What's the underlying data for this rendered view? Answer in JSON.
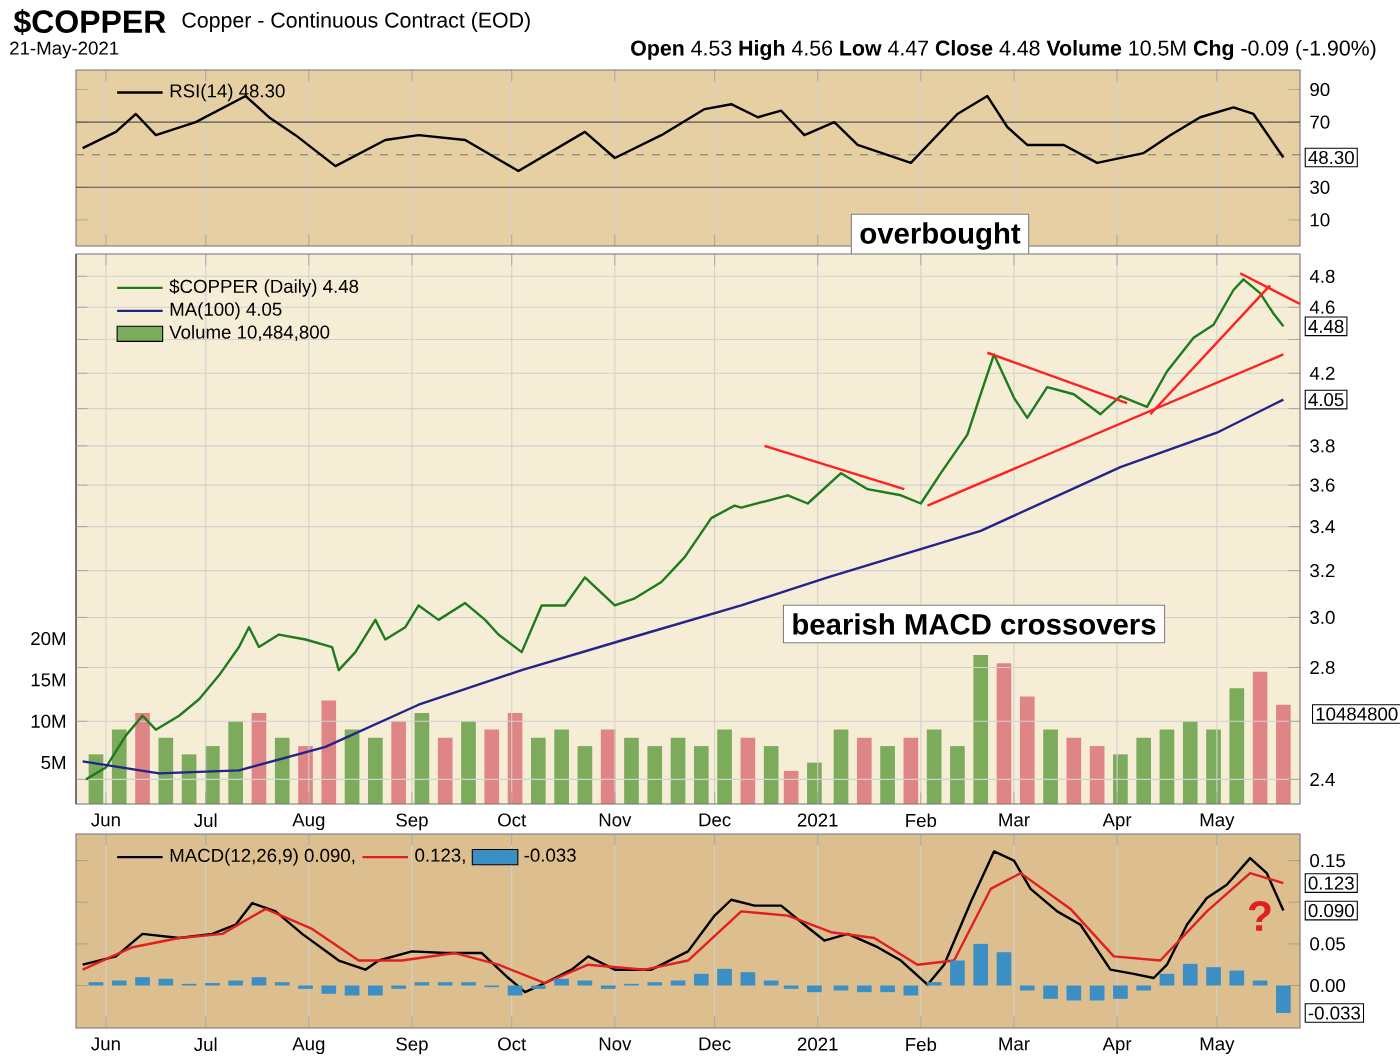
{
  "chart_data": [
    {
      "type": "line",
      "title": "$COPPER",
      "subtitle": "Copper - Continuous Contract (EOD)",
      "annotations": [
        "21-May-2021",
        "**Open** 4.53 **High** 4.56 **Low** 4.47 **Close** 4.48 **Volume** 10.5M **Chg** -0.09 (-1.90%)",
        "overbought",
        {
          "text": "48.30",
          "x": "2021-05-21",
          "y": 48.3
        }
      ],
      "xlim": [
        "2020-05-23",
        "2021-05-26"
      ],
      "xticks": [
        {
          "value": "2020-06-01",
          "label": null
        },
        {
          "value": "2020-07-01",
          "label": null
        },
        {
          "value": "2020-08-01",
          "label": null
        },
        {
          "value": "2020-09-01",
          "label": null
        },
        {
          "value": "2020-10-01",
          "label": null
        },
        {
          "value": "2020-11-01",
          "label": null
        },
        {
          "value": "2020-12-01",
          "label": null
        },
        {
          "value": "2021-01-01",
          "label": null
        },
        {
          "value": "2021-02-01",
          "label": null
        },
        {
          "value": "2021-03-01",
          "label": null
        },
        {
          "value": "2021-04-01",
          "label": null
        },
        {
          "value": "2021-05-01",
          "label": null
        }
      ],
      "ylim": [
        -6,
        102
      ],
      "yticks": [
        10,
        30,
        70,
        90
      ],
      "tick_labels": "y",
      "grid": "x",
      "legend": "top left",
      "ref_lines": [
        {
          "axis": "y",
          "value": 70,
          "color": "#555555"
        },
        {
          "axis": "y",
          "value": 30,
          "color": "#555555"
        },
        {
          "axis": "y",
          "value": 50,
          "color": "#777777",
          "line_style": "dashed"
        }
      ],
      "series": [
        {
          "name": "RSI(14) 48.30",
          "color": "#000000",
          "x": [
            "2020-05-25",
            "2020-06-04",
            "2020-06-10",
            "2020-06-16",
            "2020-06-28",
            "2020-07-13",
            "2020-07-20",
            "2020-07-28",
            "2020-08-09",
            "2020-08-24",
            "2020-09-03",
            "2020-09-17",
            "2020-10-03",
            "2020-10-23",
            "2020-11-01",
            "2020-11-15",
            "2020-11-28",
            "2020-12-06",
            "2020-12-14",
            "2020-12-21",
            "2020-12-28",
            "2021-01-06",
            "2021-01-13",
            "2021-01-29",
            "2021-02-12",
            "2021-02-21",
            "2021-02-27",
            "2021-03-05",
            "2021-03-16",
            "2021-03-26",
            "2021-04-09",
            "2021-04-17",
            "2021-04-26",
            "2021-05-06",
            "2021-05-12",
            "2021-05-21"
          ],
          "values": [
            54,
            64,
            75,
            62,
            70,
            86,
            73,
            62,
            43,
            59,
            62,
            59,
            40,
            64,
            48,
            62,
            78,
            81,
            73,
            77,
            62,
            70,
            56,
            45,
            75,
            86,
            67,
            56,
            56,
            45,
            51,
            62,
            73,
            79,
            75,
            48.3
          ]
        }
      ]
    },
    {
      "type": "line",
      "annotations": [
        "bearish MACD crossovers",
        {
          "text": "4.48",
          "x": "2021-05-21",
          "y": 4.48
        },
        {
          "text": "4.05",
          "x": "2021-05-21",
          "y": 4.05
        },
        "10484800"
      ],
      "xlim": [
        "2020-05-23",
        "2021-05-26"
      ],
      "xticks": [
        {
          "value": "2020-06-01",
          "label": "Jun"
        },
        {
          "value": "2020-07-01",
          "label": "Jul"
        },
        {
          "value": "2020-08-01",
          "label": "Aug"
        },
        {
          "value": "2020-09-01",
          "label": "Sep"
        },
        {
          "value": "2020-10-01",
          "label": "Oct"
        },
        {
          "value": "2020-11-01",
          "label": "Nov"
        },
        {
          "value": "2020-12-01",
          "label": "Dec"
        },
        {
          "value": "2021-01-01",
          "label": "2021"
        },
        {
          "value": "2021-02-01",
          "label": "Feb"
        },
        {
          "value": "2021-03-01",
          "label": "Mar"
        },
        {
          "value": "2021-04-01",
          "label": "Apr"
        },
        {
          "value": "2021-05-01",
          "label": "May"
        }
      ],
      "ylim": [
        2.32,
        4.95
      ],
      "log": true,
      "yticks": [
        2.4,
        {
          "value": 2.6,
          "label": null
        },
        2.8,
        {
          "value": 3.0,
          "label": "3.0"
        },
        3.2,
        3.4,
        3.6,
        3.8,
        {
          "value": 4.0,
          "label": null
        },
        4.2,
        {
          "value": 4.4,
          "label": null
        },
        4.6,
        4.8
      ],
      "y2lim": [
        0,
        66.5
      ],
      "y2ticks": [
        {
          "value": 5,
          "label": "5M"
        },
        {
          "value": 10,
          "label": "10M"
        },
        {
          "value": 15,
          "label": "15M"
        },
        {
          "value": 20,
          "label": "20M"
        }
      ],
      "grid": true,
      "legend": "top left",
      "series": [
        {
          "name": "$COPPER (Daily) 4.48",
          "color": "#1e7b1e",
          "x": [
            "2020-05-26",
            "2020-06-01",
            "2020-06-07",
            "2020-06-12",
            "2020-06-16",
            "2020-06-23",
            "2020-06-29",
            "2020-07-05",
            "2020-07-11",
            "2020-07-14",
            "2020-07-17",
            "2020-07-23",
            "2020-07-31",
            "2020-08-08",
            "2020-08-10",
            "2020-08-15",
            "2020-08-21",
            "2020-08-24",
            "2020-08-30",
            "2020-09-03",
            "2020-09-09",
            "2020-09-17",
            "2020-09-23",
            "2020-09-27",
            "2020-10-04",
            "2020-10-10",
            "2020-10-17",
            "2020-10-23",
            "2020-11-01",
            "2020-11-07",
            "2020-11-15",
            "2020-11-22",
            "2020-11-30",
            "2020-12-07",
            "2020-12-09",
            "2020-12-23",
            "2020-12-29",
            "2021-01-08",
            "2021-01-16",
            "2021-01-26",
            "2021-02-01",
            "2021-02-07",
            "2021-02-15",
            "2021-02-19",
            "2021-02-23",
            "2021-03-01",
            "2021-03-05",
            "2021-03-11",
            "2021-03-19",
            "2021-03-27",
            "2021-04-02",
            "2021-04-10",
            "2021-04-16",
            "2021-04-24",
            "2021-04-30",
            "2021-05-06",
            "2021-05-09",
            "2021-05-14",
            "2021-05-18",
            "2021-05-21"
          ],
          "values": [
            2.4,
            2.44,
            2.55,
            2.62,
            2.57,
            2.62,
            2.68,
            2.77,
            2.88,
            2.96,
            2.88,
            2.93,
            2.91,
            2.88,
            2.79,
            2.86,
            2.99,
            2.91,
            2.96,
            3.05,
            2.99,
            3.06,
            2.99,
            2.93,
            2.86,
            3.05,
            3.05,
            3.17,
            3.05,
            3.08,
            3.15,
            3.26,
            3.44,
            3.5,
            3.49,
            3.55,
            3.51,
            3.66,
            3.58,
            3.55,
            3.51,
            3.66,
            3.86,
            4.08,
            4.31,
            4.06,
            3.95,
            4.12,
            4.08,
            3.97,
            4.07,
            4.01,
            4.21,
            4.41,
            4.49,
            4.71,
            4.78,
            4.69,
            4.56,
            4.48
          ]
        },
        {
          "name": "MA(100) 4.05",
          "color": "#23238c",
          "x": [
            "2020-05-25",
            "2020-06-17",
            "2020-07-11",
            "2020-08-06",
            "2020-09-03",
            "2020-10-04",
            "2020-11-04",
            "2020-12-09",
            "2021-01-04",
            "2021-02-19",
            "2021-04-02",
            "2021-05-01",
            "2021-05-21"
          ],
          "values": [
            2.46,
            2.42,
            2.43,
            2.51,
            2.66,
            2.79,
            2.91,
            3.05,
            3.17,
            3.38,
            3.69,
            3.87,
            4.05
          ]
        },
        {
          "type": "line",
          "color": "#ff2020",
          "x": [
            "2020-12-16",
            "2021-01-27"
          ],
          "values": [
            3.8,
            3.58
          ]
        },
        {
          "type": "line",
          "color": "#ff2020",
          "x": [
            "2021-02-03",
            "2021-05-21"
          ],
          "values": [
            3.5,
            4.31
          ]
        },
        {
          "type": "line",
          "color": "#ff2020",
          "x": [
            "2021-02-21",
            "2021-04-04"
          ],
          "values": [
            4.32,
            4.03
          ]
        },
        {
          "type": "line",
          "color": "#ff2020",
          "x": [
            "2021-04-11",
            "2021-05-17"
          ],
          "values": [
            3.97,
            4.74
          ]
        },
        {
          "type": "line",
          "color": "#ff2020",
          "x": [
            "2021-05-08",
            "2021-05-26"
          ],
          "values": [
            4.82,
            4.62
          ]
        },
        {
          "name": "Volume 10,484,800",
          "type": "bar",
          "axis": "y2",
          "color": "#7cab5c",
          "x": [
            "2020-05-29",
            "2020-06-05",
            "2020-06-12",
            "2020-06-19",
            "2020-06-26",
            "2020-07-03",
            "2020-07-10",
            "2020-07-17",
            "2020-07-24",
            "2020-07-31",
            "2020-08-07",
            "2020-08-14",
            "2020-08-21",
            "2020-08-28",
            "2020-09-04",
            "2020-09-11",
            "2020-09-18",
            "2020-09-25",
            "2020-10-02",
            "2020-10-09",
            "2020-10-16",
            "2020-10-23",
            "2020-10-30",
            "2020-11-06",
            "2020-11-13",
            "2020-11-20",
            "2020-11-27",
            "2020-12-04",
            "2020-12-11",
            "2020-12-18",
            "2020-12-24",
            "2020-12-31",
            "2021-01-08",
            "2021-01-15",
            "2021-01-22",
            "2021-01-29",
            "2021-02-05",
            "2021-02-12",
            "2021-02-19",
            "2021-02-26",
            "2021-03-05",
            "2021-03-12",
            "2021-03-19",
            "2021-03-26",
            "2021-04-02",
            "2021-04-09",
            "2021-04-16",
            "2021-04-23",
            "2021-04-30",
            "2021-05-07",
            "2021-05-14",
            "2021-05-21"
          ],
          "values": [
            6,
            9,
            11,
            8,
            6,
            7,
            10,
            11,
            8,
            7,
            12.5,
            9,
            8,
            10,
            11,
            8,
            10,
            9,
            11,
            8,
            9,
            7,
            9,
            8,
            7,
            8,
            7,
            9,
            8,
            7,
            4,
            5,
            9,
            8,
            7,
            8,
            9,
            7,
            18,
            17,
            13,
            9,
            8,
            7,
            6,
            8,
            9,
            10,
            9,
            14,
            16,
            12
          ],
          "colors": [
            "#7cab5c",
            "#7cab5c",
            "#e08585",
            "#7cab5c",
            "#7cab5c",
            "#7cab5c",
            "#7cab5c",
            "#e08585",
            "#7cab5c",
            "#e08585",
            "#e08585",
            "#7cab5c",
            "#7cab5c",
            "#e08585",
            "#7cab5c",
            "#e08585",
            "#7cab5c",
            "#e08585",
            "#e08585",
            "#7cab5c",
            "#7cab5c",
            "#7cab5c",
            "#e08585",
            "#7cab5c",
            "#7cab5c",
            "#7cab5c",
            "#7cab5c",
            "#7cab5c",
            "#e08585",
            "#7cab5c",
            "#e08585",
            "#7cab5c",
            "#7cab5c",
            "#e08585",
            "#7cab5c",
            "#e08585",
            "#7cab5c",
            "#7cab5c",
            "#7cab5c",
            "#e08585",
            "#e08585",
            "#7cab5c",
            "#e08585",
            "#e08585",
            "#7cab5c",
            "#7cab5c",
            "#7cab5c",
            "#7cab5c",
            "#7cab5c",
            "#7cab5c",
            "#e08585",
            "#e08585"
          ]
        }
      ]
    },
    {
      "type": "line",
      "annotations": [
        {
          "text": "0.123",
          "x": "2021-05-21",
          "y": 0.123
        },
        {
          "text": "0.090",
          "x": "2021-05-21",
          "y": 0.09
        },
        {
          "text": "-0.033",
          "x": "2021-05-21",
          "y": -0.033
        },
        "?"
      ],
      "xlim": [
        "2020-05-23",
        "2021-05-26"
      ],
      "xticks": [
        {
          "value": "2020-06-01",
          "label": "Jun"
        },
        {
          "value": "2020-07-01",
          "label": "Jul"
        },
        {
          "value": "2020-08-01",
          "label": "Aug"
        },
        {
          "value": "2020-09-01",
          "label": "Sep"
        },
        {
          "value": "2020-10-01",
          "label": "Oct"
        },
        {
          "value": "2020-11-01",
          "label": "Nov"
        },
        {
          "value": "2020-12-01",
          "label": "Dec"
        },
        {
          "value": "2021-01-01",
          "label": "2021"
        },
        {
          "value": "2021-02-01",
          "label": "Feb"
        },
        {
          "value": "2021-03-01",
          "label": "Mar"
        },
        {
          "value": "2021-04-01",
          "label": "Apr"
        },
        {
          "value": "2021-05-01",
          "label": "May"
        }
      ],
      "ylim": [
        -0.051,
        0.182
      ],
      "yticks": [
        {
          "value": 0,
          "label": "0.00"
        },
        {
          "value": 0.05,
          "label": "0.05"
        },
        {
          "value": 0.1,
          "label": null
        },
        {
          "value": 0.15,
          "label": "0.15"
        }
      ],
      "grid": "x",
      "legend": "top left",
      "series": [
        {
          "name": "MACD(12,26,9) 0.090,",
          "color": "#000000",
          "x": [
            "2020-05-25",
            "2020-06-04",
            "2020-06-12",
            "2020-06-23",
            "2020-07-03",
            "2020-07-10",
            "2020-07-15",
            "2020-07-22",
            "2020-07-30",
            "2020-08-10",
            "2020-08-18",
            "2020-08-22",
            "2020-09-01",
            "2020-09-11",
            "2020-09-22",
            "2020-09-30",
            "2020-10-05",
            "2020-10-11",
            "2020-10-19",
            "2020-10-24",
            "2020-11-01",
            "2020-11-12",
            "2020-11-23",
            "2020-12-01",
            "2020-12-06",
            "2020-12-13",
            "2020-12-21",
            "2020-12-28",
            "2021-01-03",
            "2021-01-10",
            "2021-01-19",
            "2021-01-26",
            "2021-02-03",
            "2021-02-08",
            "2021-02-16",
            "2021-02-23",
            "2021-03-01",
            "2021-03-06",
            "2021-03-14",
            "2021-03-21",
            "2021-03-30",
            "2021-04-06",
            "2021-04-12",
            "2021-04-16",
            "2021-04-22",
            "2021-04-28",
            "2021-05-04",
            "2021-05-11",
            "2021-05-16",
            "2021-05-21"
          ],
          "values": [
            0.025,
            0.035,
            0.062,
            0.057,
            0.062,
            0.073,
            0.099,
            0.089,
            0.062,
            0.03,
            0.019,
            0.03,
            0.041,
            0.039,
            0.039,
            0.009,
            -0.008,
            0.003,
            0.019,
            0.035,
            0.019,
            0.019,
            0.041,
            0.084,
            0.103,
            0.096,
            0.096,
            0.073,
            0.054,
            0.062,
            0.046,
            0.03,
            0.001,
            0.025,
            0.1,
            0.161,
            0.15,
            0.116,
            0.089,
            0.073,
            0.019,
            0.014,
            0.009,
            0.025,
            0.073,
            0.105,
            0.121,
            0.153,
            0.135,
            0.09
          ]
        },
        {
          "name": "0.123,",
          "color": "#e02020",
          "x": [
            "2020-05-25",
            "2020-06-09",
            "2020-06-23",
            "2020-07-06",
            "2020-07-19",
            "2020-08-02",
            "2020-08-16",
            "2020-08-29",
            "2020-09-14",
            "2020-09-27",
            "2020-10-11",
            "2020-10-24",
            "2020-11-10",
            "2020-11-23",
            "2020-12-09",
            "2020-12-23",
            "2021-01-05",
            "2021-01-18",
            "2021-01-31",
            "2021-02-11",
            "2021-02-22",
            "2021-03-03",
            "2021-03-18",
            "2021-03-31",
            "2021-04-14",
            "2021-04-28",
            "2021-05-11",
            "2021-05-21"
          ],
          "values": [
            0.019,
            0.046,
            0.057,
            0.062,
            0.092,
            0.068,
            0.03,
            0.03,
            0.039,
            0.025,
            0.003,
            0.025,
            0.019,
            0.03,
            0.089,
            0.084,
            0.064,
            0.057,
            0.025,
            0.03,
            0.116,
            0.135,
            0.092,
            0.035,
            0.03,
            0.089,
            0.135,
            0.123
          ]
        },
        {
          "name": "-0.033",
          "type": "bar",
          "color": "#3b8fc4",
          "x": [
            "2020-05-29",
            "2020-06-05",
            "2020-06-12",
            "2020-06-19",
            "2020-06-26",
            "2020-07-03",
            "2020-07-10",
            "2020-07-17",
            "2020-07-24",
            "2020-07-31",
            "2020-08-07",
            "2020-08-14",
            "2020-08-21",
            "2020-08-28",
            "2020-09-04",
            "2020-09-11",
            "2020-09-18",
            "2020-09-25",
            "2020-10-02",
            "2020-10-09",
            "2020-10-16",
            "2020-10-23",
            "2020-10-30",
            "2020-11-06",
            "2020-11-13",
            "2020-11-20",
            "2020-11-27",
            "2020-12-04",
            "2020-12-11",
            "2020-12-18",
            "2020-12-24",
            "2020-12-31",
            "2021-01-08",
            "2021-01-15",
            "2021-01-22",
            "2021-01-29",
            "2021-02-05",
            "2021-02-12",
            "2021-02-19",
            "2021-02-26",
            "2021-03-05",
            "2021-03-12",
            "2021-03-19",
            "2021-03-26",
            "2021-04-02",
            "2021-04-09",
            "2021-04-16",
            "2021-04-23",
            "2021-04-30",
            "2021-05-07",
            "2021-05-14",
            "2021-05-21"
          ],
          "values": [
            0.004,
            0.006,
            0.01,
            0.008,
            0.002,
            0.003,
            0.006,
            0.01,
            0.004,
            -0.004,
            -0.01,
            -0.012,
            -0.012,
            -0.004,
            0.004,
            0.004,
            0.004,
            -0.002,
            -0.012,
            -0.004,
            0.008,
            0.006,
            -0.004,
            0.002,
            0.004,
            0.006,
            0.014,
            0.02,
            0.016,
            0.006,
            -0.004,
            -0.008,
            -0.006,
            -0.008,
            -0.008,
            -0.012,
            0.004,
            0.03,
            0.05,
            0.04,
            -0.006,
            -0.016,
            -0.018,
            -0.018,
            -0.016,
            -0.006,
            0.014,
            0.026,
            0.022,
            0.018,
            0.006,
            -0.033
          ]
        }
      ]
    }
  ]
}
